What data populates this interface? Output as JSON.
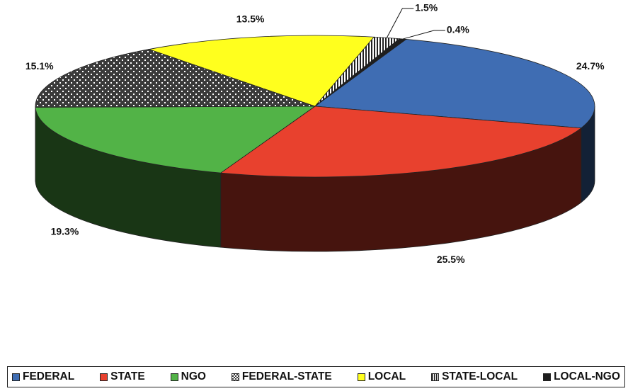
{
  "chart_data": {
    "type": "pie",
    "categories": [
      "FEDERAL",
      "STATE",
      "NGO",
      "FEDERAL-STATE",
      "LOCAL",
      "STATE-LOCAL",
      "LOCAL-NGO"
    ],
    "values": [
      24.7,
      25.5,
      19.3,
      15.1,
      13.5,
      1.5,
      0.4
    ],
    "value_labels": [
      "24.7%",
      "25.5%",
      "19.3%",
      "15.1%",
      "13.5%",
      "1.5%",
      "0.4%"
    ],
    "colors": [
      "#3f6db3",
      "#e8412e",
      "#52b347",
      "#3a3a3a",
      "#ffff1e",
      "#222222",
      "#1e1e1e"
    ],
    "patterns": [
      null,
      null,
      null,
      "checker",
      null,
      "stripes",
      null
    ],
    "legend": "bottom"
  }
}
